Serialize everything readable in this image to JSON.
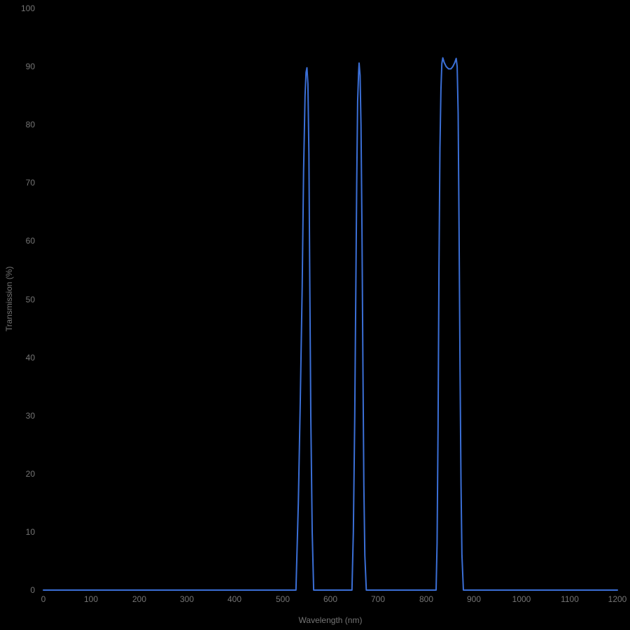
{
  "colors": {
    "background": "#000000",
    "line": "#3b6fd6",
    "label_text": "#757575"
  },
  "chart_data": {
    "type": "line",
    "title": "",
    "xlabel": "Wavelength (nm)",
    "ylabel": "Transmission (%)",
    "xlim": [
      0,
      1200
    ],
    "ylim": [
      0,
      100
    ],
    "grid": false,
    "legend": false,
    "x_ticks": [
      0,
      100,
      200,
      300,
      400,
      500,
      600,
      700,
      800,
      900,
      1000,
      1100,
      1200
    ],
    "y_ticks": [
      0,
      10,
      20,
      30,
      40,
      50,
      60,
      70,
      80,
      90,
      100
    ],
    "series": [
      {
        "name": "Transmission",
        "color": "#3b6fd6",
        "points": [
          [
            0,
            0
          ],
          [
            100,
            0
          ],
          [
            200,
            0
          ],
          [
            300,
            0
          ],
          [
            400,
            0
          ],
          [
            500,
            0
          ],
          [
            520,
            0
          ],
          [
            528,
            0
          ],
          [
            533,
            15
          ],
          [
            537,
            32
          ],
          [
            541,
            52
          ],
          [
            544,
            72
          ],
          [
            547,
            85
          ],
          [
            549,
            89
          ],
          [
            551,
            89.8
          ],
          [
            553,
            87
          ],
          [
            555,
            75
          ],
          [
            557,
            52
          ],
          [
            559,
            30
          ],
          [
            562,
            10
          ],
          [
            565,
            0
          ],
          [
            600,
            0
          ],
          [
            640,
            0
          ],
          [
            645,
            0
          ],
          [
            648,
            10
          ],
          [
            651,
            30
          ],
          [
            653,
            50
          ],
          [
            655,
            70
          ],
          [
            657,
            84
          ],
          [
            659,
            89
          ],
          [
            660,
            90.6
          ],
          [
            662,
            88.5
          ],
          [
            664,
            80
          ],
          [
            666,
            62
          ],
          [
            668,
            38
          ],
          [
            670,
            18
          ],
          [
            672,
            6
          ],
          [
            675,
            0
          ],
          [
            700,
            0
          ],
          [
            760,
            0
          ],
          [
            815,
            0
          ],
          [
            821,
            0
          ],
          [
            823,
            8
          ],
          [
            825,
            28
          ],
          [
            827,
            55
          ],
          [
            829,
            76
          ],
          [
            831,
            86
          ],
          [
            833,
            90.5
          ],
          [
            835,
            91.5
          ],
          [
            838,
            90.7
          ],
          [
            842,
            90
          ],
          [
            847,
            89.6
          ],
          [
            852,
            89.6
          ],
          [
            856,
            90
          ],
          [
            860,
            90.7
          ],
          [
            863,
            91.4
          ],
          [
            865,
            90
          ],
          [
            867,
            82
          ],
          [
            869,
            62
          ],
          [
            871,
            38
          ],
          [
            873,
            18
          ],
          [
            875,
            6
          ],
          [
            878,
            0
          ],
          [
            900,
            0
          ],
          [
            1000,
            0
          ],
          [
            1100,
            0
          ],
          [
            1200,
            0
          ]
        ]
      }
    ]
  }
}
